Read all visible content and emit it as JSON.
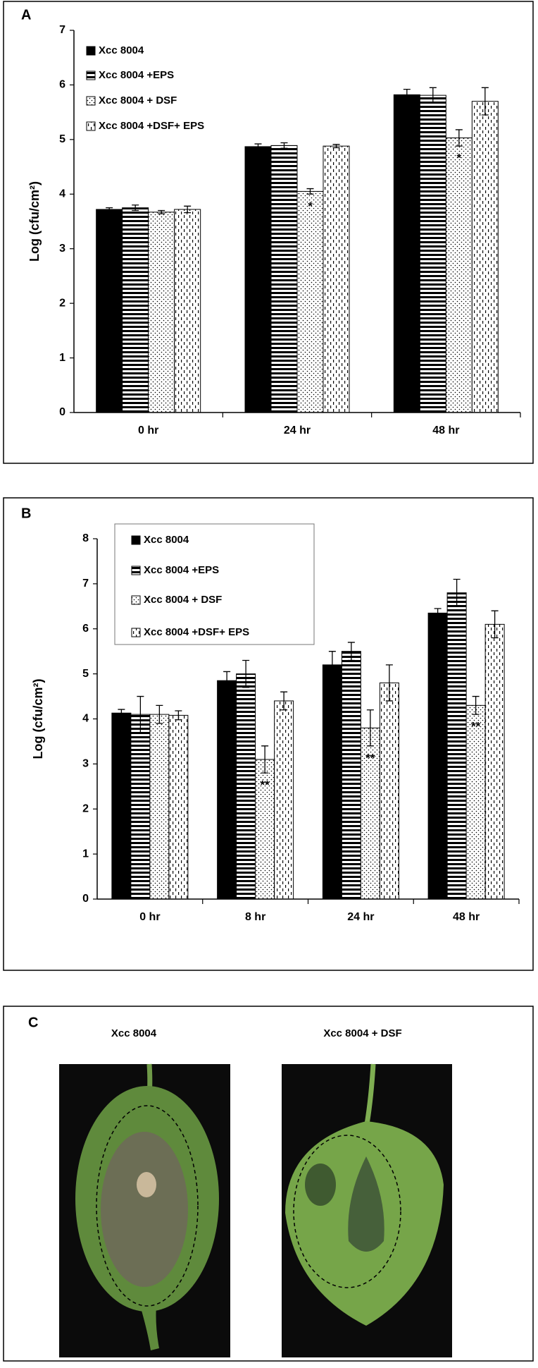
{
  "chart_data": [
    {
      "type": "bar",
      "panel_label": "A",
      "y_label": "Log (cfu/cm²)",
      "categories": [
        "0 hr",
        "24 hr",
        "48 hr"
      ],
      "ylim": [
        0,
        7
      ],
      "yticks": [
        0,
        1,
        2,
        3,
        4,
        5,
        6,
        7
      ],
      "grid": false,
      "legend": "top-left",
      "legend_box": false,
      "series": [
        {
          "name": "Xcc 8004",
          "color": "#000000",
          "pattern": "solid",
          "values": [
            3.72,
            4.87,
            5.82
          ],
          "errors": [
            0.03,
            0.05,
            0.1
          ],
          "annotations": [
            null,
            null,
            null
          ]
        },
        {
          "name": "Xcc 8004 +EPS",
          "color": "#000000",
          "pattern": "horizontal",
          "values": [
            3.75,
            4.89,
            5.81
          ],
          "errors": [
            0.05,
            0.05,
            0.14
          ],
          "annotations": [
            null,
            null,
            null
          ]
        },
        {
          "name": "Xcc 8004 + DSF",
          "color": "#000000",
          "pattern": "dots",
          "values": [
            3.67,
            4.05,
            5.03
          ],
          "errors": [
            0.03,
            0.05,
            0.15
          ],
          "annotations": [
            null,
            "*",
            "*"
          ]
        },
        {
          "name": "Xcc 8004 +DSF+ EPS",
          "color": "#000000",
          "pattern": "dashes",
          "values": [
            3.72,
            4.88,
            5.7
          ],
          "errors": [
            0.06,
            0.03,
            0.25
          ],
          "annotations": [
            null,
            null,
            null
          ]
        }
      ]
    },
    {
      "type": "bar",
      "panel_label": "B",
      "y_label": "Log (cfu/cm²)",
      "categories": [
        "0 hr",
        "8 hr",
        "24 hr",
        "48 hr"
      ],
      "ylim": [
        0,
        8
      ],
      "yticks": [
        0,
        1,
        2,
        3,
        4,
        5,
        6,
        7,
        8
      ],
      "grid": false,
      "legend": "top-left",
      "legend_box": true,
      "series": [
        {
          "name": "Xcc 8004",
          "color": "#000000",
          "pattern": "solid",
          "values": [
            4.13,
            4.85,
            5.2,
            6.35
          ],
          "errors": [
            0.08,
            0.2,
            0.3,
            0.1
          ],
          "annotations": [
            null,
            null,
            null,
            null
          ]
        },
        {
          "name": "Xcc 8004 +EPS",
          "color": "#000000",
          "pattern": "horizontal",
          "values": [
            4.1,
            5.0,
            5.5,
            6.8
          ],
          "errors": [
            0.4,
            0.3,
            0.2,
            0.3
          ],
          "annotations": [
            null,
            null,
            null,
            null
          ]
        },
        {
          "name": "Xcc 8004 + DSF",
          "color": "#000000",
          "pattern": "dots",
          "values": [
            4.1,
            3.1,
            3.8,
            4.3
          ],
          "errors": [
            0.2,
            0.3,
            0.4,
            0.2
          ],
          "annotations": [
            null,
            "**",
            "**",
            "**"
          ]
        },
        {
          "name": "Xcc 8004 +DSF+ EPS",
          "color": "#000000",
          "pattern": "dashes",
          "values": [
            4.08,
            4.4,
            4.8,
            6.1
          ],
          "errors": [
            0.1,
            0.2,
            0.4,
            0.3
          ],
          "annotations": [
            null,
            null,
            null,
            null
          ]
        }
      ]
    }
  ],
  "panel_c": {
    "label": "C",
    "captions": [
      "Xcc 8004",
      "Xcc 8004 + DSF"
    ]
  }
}
